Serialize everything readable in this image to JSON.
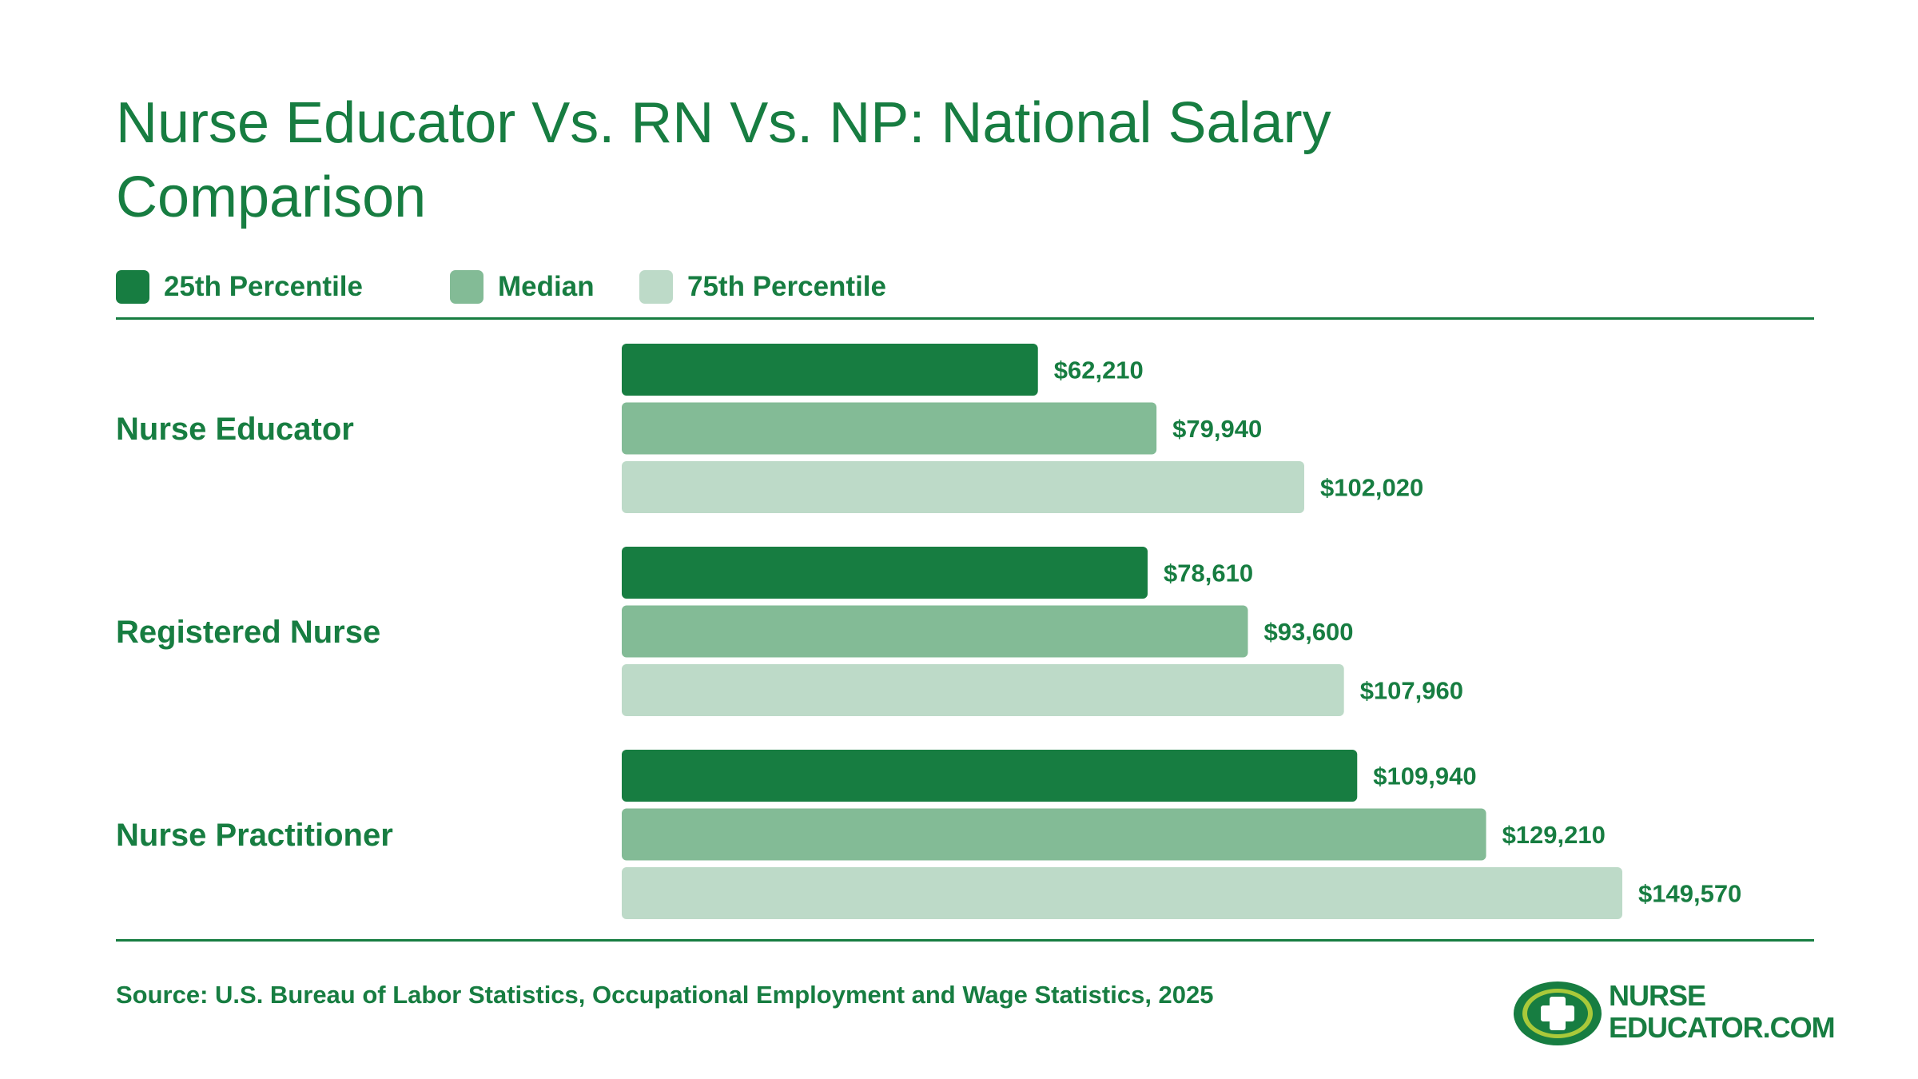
{
  "title": "Nurse Educator Vs. RN Vs. NP: National Salary Comparison",
  "legend": [
    {
      "label": "25th Percentile",
      "color": "#177d41"
    },
    {
      "label": "Median",
      "color": "#83bb96"
    },
    {
      "label": "75th Percentile",
      "color": "#bddac8"
    }
  ],
  "chart_data": {
    "type": "bar",
    "orientation": "horizontal",
    "title": "Nurse Educator Vs. RN Vs. NP: National Salary Comparison",
    "categories": [
      "Nurse Educator",
      "Registered Nurse",
      "Nurse Practitioner"
    ],
    "series": [
      {
        "name": "25th Percentile",
        "color": "#177d41",
        "values": [
          62210,
          78610,
          109940
        ],
        "labels": [
          "$62,210",
          "$78,610",
          "$109,940"
        ]
      },
      {
        "name": "Median",
        "color": "#83bb96",
        "values": [
          79940,
          93600,
          129210
        ],
        "labels": [
          "$79,940",
          "$93,600",
          "$129,210"
        ]
      },
      {
        "name": "75th Percentile",
        "color": "#bddac8",
        "values": [
          102020,
          107960,
          149570
        ],
        "labels": [
          "$102,020",
          "$107,960",
          "$149,570"
        ]
      }
    ],
    "grid": false,
    "legend_position": "top-left"
  },
  "source": "Source: U.S. Bureau of Labor Statistics, Occupational Employment and Wage Statistics, 2025",
  "logo": {
    "line1": "NURSE",
    "line2": "EDUCATOR.COM",
    "icon": "medical-cross-icon"
  }
}
